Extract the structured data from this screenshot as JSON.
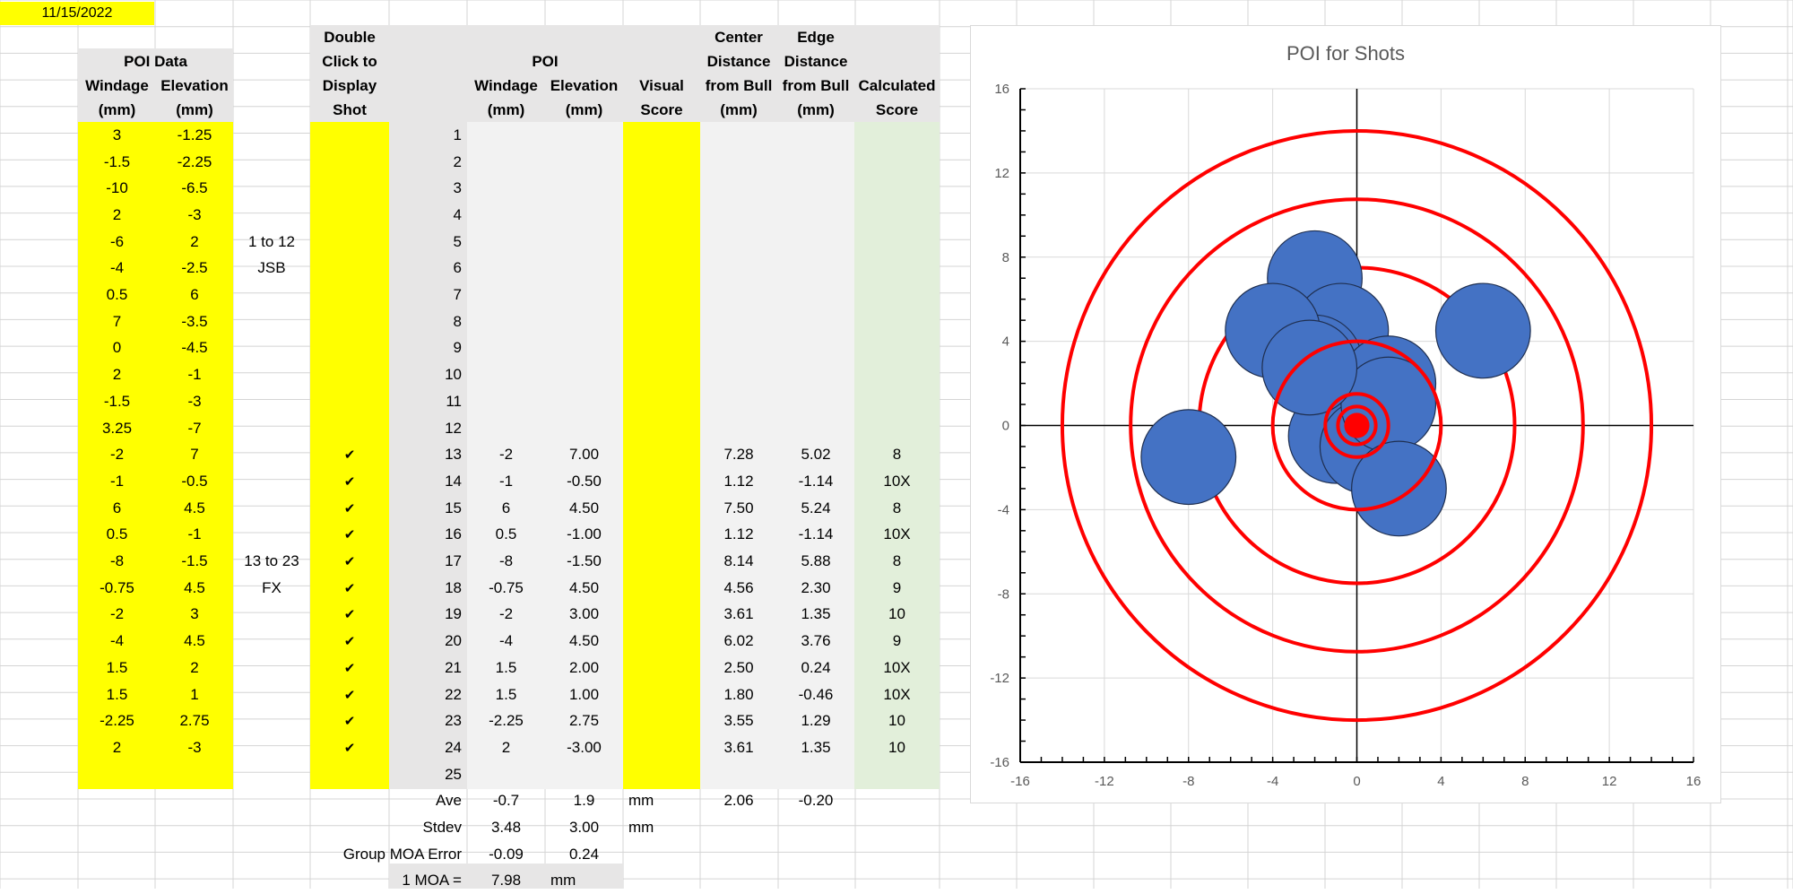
{
  "date": "11/15/2022",
  "headers": {
    "poi_data": "POI Data",
    "windage": "Windage",
    "elevation": "Elevation",
    "mm": "(mm)",
    "dbl1": "Double",
    "dbl2": "Click to",
    "dbl3": "Display",
    "dbl4": "Shot",
    "poi": "POI",
    "visual1": "Visual",
    "visual2": "Score",
    "center1": "Center",
    "center2": "Distance",
    "center3": "from Bull",
    "edge1": "Edge",
    "edge2": "Distance",
    "edge3": "from Bull",
    "calc1": "Calculated",
    "calc2": "Score"
  },
  "group_labels": [
    {
      "row": 5,
      "text": "1 to 12"
    },
    {
      "row": 6,
      "text": "JSB"
    },
    {
      "row": 17,
      "text": "13 to 23"
    },
    {
      "row": 18,
      "text": "FX"
    }
  ],
  "rows": [
    {
      "n": "1",
      "w": "3",
      "e": "-1.25",
      "chk": "",
      "pw": "",
      "pe": "",
      "cd": "",
      "ed": "",
      "cs": ""
    },
    {
      "n": "2",
      "w": "-1.5",
      "e": "-2.25",
      "chk": "",
      "pw": "",
      "pe": "",
      "cd": "",
      "ed": "",
      "cs": ""
    },
    {
      "n": "3",
      "w": "-10",
      "e": "-6.5",
      "chk": "",
      "pw": "",
      "pe": "",
      "cd": "",
      "ed": "",
      "cs": ""
    },
    {
      "n": "4",
      "w": "2",
      "e": "-3",
      "chk": "",
      "pw": "",
      "pe": "",
      "cd": "",
      "ed": "",
      "cs": ""
    },
    {
      "n": "5",
      "w": "-6",
      "e": "2",
      "chk": "",
      "pw": "",
      "pe": "",
      "cd": "",
      "ed": "",
      "cs": ""
    },
    {
      "n": "6",
      "w": "-4",
      "e": "-2.5",
      "chk": "",
      "pw": "",
      "pe": "",
      "cd": "",
      "ed": "",
      "cs": ""
    },
    {
      "n": "7",
      "w": "0.5",
      "e": "6",
      "chk": "",
      "pw": "",
      "pe": "",
      "cd": "",
      "ed": "",
      "cs": ""
    },
    {
      "n": "8",
      "w": "7",
      "e": "-3.5",
      "chk": "",
      "pw": "",
      "pe": "",
      "cd": "",
      "ed": "",
      "cs": ""
    },
    {
      "n": "9",
      "w": "0",
      "e": "-4.5",
      "chk": "",
      "pw": "",
      "pe": "",
      "cd": "",
      "ed": "",
      "cs": ""
    },
    {
      "n": "10",
      "w": "2",
      "e": "-1",
      "chk": "",
      "pw": "",
      "pe": "",
      "cd": "",
      "ed": "",
      "cs": ""
    },
    {
      "n": "11",
      "w": "-1.5",
      "e": "-3",
      "chk": "",
      "pw": "",
      "pe": "",
      "cd": "",
      "ed": "",
      "cs": ""
    },
    {
      "n": "12",
      "w": "3.25",
      "e": "-7",
      "chk": "",
      "pw": "",
      "pe": "",
      "cd": "",
      "ed": "",
      "cs": ""
    },
    {
      "n": "13",
      "w": "-2",
      "e": "7",
      "chk": "✔",
      "pw": "-2",
      "pe": "7.00",
      "cd": "7.28",
      "ed": "5.02",
      "cs": "8"
    },
    {
      "n": "14",
      "w": "-1",
      "e": "-0.5",
      "chk": "✔",
      "pw": "-1",
      "pe": "-0.50",
      "cd": "1.12",
      "ed": "-1.14",
      "cs": "10X"
    },
    {
      "n": "15",
      "w": "6",
      "e": "4.5",
      "chk": "✔",
      "pw": "6",
      "pe": "4.50",
      "cd": "7.50",
      "ed": "5.24",
      "cs": "8"
    },
    {
      "n": "16",
      "w": "0.5",
      "e": "-1",
      "chk": "✔",
      "pw": "0.5",
      "pe": "-1.00",
      "cd": "1.12",
      "ed": "-1.14",
      "cs": "10X"
    },
    {
      "n": "17",
      "w": "-8",
      "e": "-1.5",
      "chk": "✔",
      "pw": "-8",
      "pe": "-1.50",
      "cd": "8.14",
      "ed": "5.88",
      "cs": "8"
    },
    {
      "n": "18",
      "w": "-0.75",
      "e": "4.5",
      "chk": "✔",
      "pw": "-0.75",
      "pe": "4.50",
      "cd": "4.56",
      "ed": "2.30",
      "cs": "9"
    },
    {
      "n": "19",
      "w": "-2",
      "e": "3",
      "chk": "✔",
      "pw": "-2",
      "pe": "3.00",
      "cd": "3.61",
      "ed": "1.35",
      "cs": "10"
    },
    {
      "n": "20",
      "w": "-4",
      "e": "4.5",
      "chk": "✔",
      "pw": "-4",
      "pe": "4.50",
      "cd": "6.02",
      "ed": "3.76",
      "cs": "9"
    },
    {
      "n": "21",
      "w": "1.5",
      "e": "2",
      "chk": "✔",
      "pw": "1.5",
      "pe": "2.00",
      "cd": "2.50",
      "ed": "0.24",
      "cs": "10X"
    },
    {
      "n": "22",
      "w": "1.5",
      "e": "1",
      "chk": "✔",
      "pw": "1.5",
      "pe": "1.00",
      "cd": "1.80",
      "ed": "-0.46",
      "cs": "10X"
    },
    {
      "n": "23",
      "w": "-2.25",
      "e": "2.75",
      "chk": "✔",
      "pw": "-2.25",
      "pe": "2.75",
      "cd": "3.55",
      "ed": "1.29",
      "cs": "10"
    },
    {
      "n": "24",
      "w": "2",
      "e": "-3",
      "chk": "✔",
      "pw": "2",
      "pe": "-3.00",
      "cd": "3.61",
      "ed": "1.35",
      "cs": "10"
    },
    {
      "n": "25",
      "w": "",
      "e": "",
      "chk": "",
      "pw": "",
      "pe": "",
      "cd": "",
      "ed": "",
      "cs": ""
    }
  ],
  "summary": {
    "ave_label": "Ave",
    "ave_w": "-0.7",
    "ave_e": "1.9",
    "ave_unit": "mm",
    "ave_cd": "2.06",
    "ave_ed": "-0.20",
    "stdev_label": "Stdev",
    "stdev_w": "3.48",
    "stdev_e": "3.00",
    "stdev_unit": "mm",
    "moa_err_label": "Group MOA Error",
    "moa_err_w": "-0.09",
    "moa_err_e": "0.24",
    "moa_label": "1 MOA =",
    "moa_val": "7.98",
    "moa_unit": "mm"
  },
  "colors": {
    "yellow": "#FFFF00",
    "header_gray": "#E7E6E6",
    "light_gray": "#F2F2F2",
    "light_green": "#E2EFDA",
    "shot_blue": "#4472C4",
    "ring_red": "#FF0000"
  },
  "chart_data": {
    "type": "scatter",
    "title": "POI for Shots",
    "xlim": [
      -16,
      16
    ],
    "ylim": [
      -16,
      16
    ],
    "xticks": [
      -16,
      -12,
      -8,
      -4,
      0,
      4,
      8,
      12,
      16
    ],
    "yticks": [
      -16,
      -12,
      -8,
      -4,
      0,
      4,
      8,
      12,
      16
    ],
    "grid": true,
    "shot_diameter": 4.5,
    "points": [
      {
        "x": -2,
        "y": 7
      },
      {
        "x": -1,
        "y": -0.5
      },
      {
        "x": 6,
        "y": 4.5
      },
      {
        "x": 0.5,
        "y": -1
      },
      {
        "x": -8,
        "y": -1.5
      },
      {
        "x": -0.75,
        "y": 4.5
      },
      {
        "x": -2,
        "y": 3
      },
      {
        "x": -4,
        "y": 4.5
      },
      {
        "x": 1.5,
        "y": 2
      },
      {
        "x": 1.5,
        "y": 1
      },
      {
        "x": -2.25,
        "y": 2.75
      },
      {
        "x": 2,
        "y": -3
      }
    ],
    "ring_radii": [
      14,
      10.75,
      7.5,
      4,
      1.5,
      0.9
    ],
    "bull_radius": 0.6
  }
}
